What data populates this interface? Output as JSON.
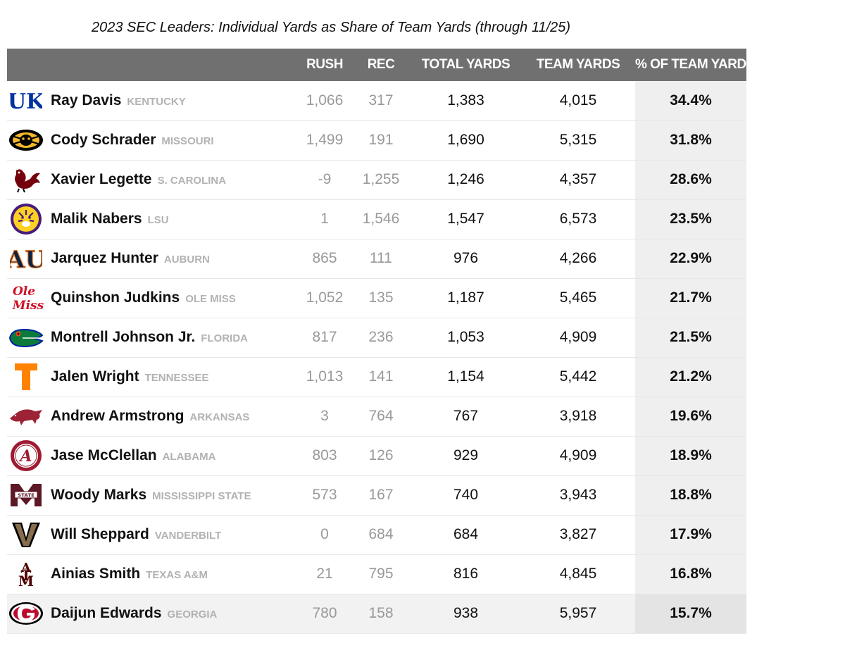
{
  "title": "2023 SEC Leaders: Individual Yards as Share of Team Yards (through 11/25)",
  "columns": {
    "rush": "RUSH",
    "rec": "REC",
    "total": "TOTAL YARDS",
    "team": "TEAM YARDS",
    "pct": "% OF TEAM YARDS"
  },
  "rows": [
    {
      "player": "Ray Davis",
      "team": "KENTUCKY",
      "logo": "kentucky-logo-icon",
      "rush": "1,066",
      "rec": "317",
      "total": "1,383",
      "team_yards": "4,015",
      "pct": "34.4%"
    },
    {
      "player": "Cody Schrader",
      "team": "MISSOURI",
      "logo": "missouri-tiger-logo-icon",
      "rush": "1,499",
      "rec": "191",
      "total": "1,690",
      "team_yards": "5,315",
      "pct": "31.8%"
    },
    {
      "player": "Xavier Legette",
      "team": "S. CAROLINA",
      "logo": "gamecock-logo-icon",
      "rush": "-9",
      "rec": "1,255",
      "total": "1,246",
      "team_yards": "4,357",
      "pct": "28.6%"
    },
    {
      "player": "Malik Nabers",
      "team": "LSU",
      "logo": "lsu-tiger-logo-icon",
      "rush": "1",
      "rec": "1,546",
      "total": "1,547",
      "team_yards": "6,573",
      "pct": "23.5%"
    },
    {
      "player": "Jarquez Hunter",
      "team": "AUBURN",
      "logo": "auburn-logo-icon",
      "rush": "865",
      "rec": "111",
      "total": "976",
      "team_yards": "4,266",
      "pct": "22.9%"
    },
    {
      "player": "Quinshon Judkins",
      "team": "OLE MISS",
      "logo": "ole-miss-logo-icon",
      "rush": "1,052",
      "rec": "135",
      "total": "1,187",
      "team_yards": "5,465",
      "pct": "21.7%"
    },
    {
      "player": "Montrell Johnson Jr.",
      "team": "FLORIDA",
      "logo": "florida-gator-logo-icon",
      "rush": "817",
      "rec": "236",
      "total": "1,053",
      "team_yards": "4,909",
      "pct": "21.5%"
    },
    {
      "player": "Jalen Wright",
      "team": "TENNESSEE",
      "logo": "tennessee-logo-icon",
      "rush": "1,013",
      "rec": "141",
      "total": "1,154",
      "team_yards": "5,442",
      "pct": "21.2%"
    },
    {
      "player": "Andrew Armstrong",
      "team": "ARKANSAS",
      "logo": "razorback-logo-icon",
      "rush": "3",
      "rec": "764",
      "total": "767",
      "team_yards": "3,918",
      "pct": "19.6%"
    },
    {
      "player": "Jase McClellan",
      "team": "ALABAMA",
      "logo": "alabama-logo-icon",
      "rush": "803",
      "rec": "126",
      "total": "929",
      "team_yards": "4,909",
      "pct": "18.9%"
    },
    {
      "player": "Woody Marks",
      "team": "MISSISSIPPI STATE",
      "logo": "mississippi-state-logo-icon",
      "rush": "573",
      "rec": "167",
      "total": "740",
      "team_yards": "3,943",
      "pct": "18.8%"
    },
    {
      "player": "Will Sheppard",
      "team": "VANDERBILT",
      "logo": "vanderbilt-logo-icon",
      "rush": "0",
      "rec": "684",
      "total": "684",
      "team_yards": "3,827",
      "pct": "17.9%"
    },
    {
      "player": "Ainias Smith",
      "team": "TEXAS A&M",
      "logo": "texas-am-logo-icon",
      "rush": "21",
      "rec": "795",
      "total": "816",
      "team_yards": "4,845",
      "pct": "16.8%"
    },
    {
      "player": "Daijun Edwards",
      "team": "GEORGIA",
      "logo": "georgia-logo-icon",
      "rush": "780",
      "rec": "158",
      "total": "938",
      "team_yards": "5,957",
      "pct": "15.7%"
    }
  ],
  "logos": {
    "kentucky": {
      "text": "UK",
      "color": "#0033a0"
    },
    "missouri": {
      "color": "#f1b82d"
    },
    "south_carolina": {
      "color": "#73000a"
    },
    "lsu": {
      "color": "#461d7c"
    },
    "auburn": {
      "text": "AU",
      "color": "#0c2340",
      "accent": "#e87722"
    },
    "ole_miss": {
      "text": "Ole Miss",
      "color": "#ce1126"
    },
    "florida": {
      "color": "#0021a5",
      "accent": "#fa4616"
    },
    "tennessee": {
      "text": "T",
      "color": "#ff8200"
    },
    "arkansas": {
      "color": "#9d2235"
    },
    "alabama": {
      "text": "A",
      "color": "#9e1b32"
    },
    "mississippi_state": {
      "text": "M",
      "color": "#5d1725"
    },
    "vanderbilt": {
      "text": "V",
      "color": "#866d4b"
    },
    "texas_am": {
      "text": "ATM",
      "color": "#500000"
    },
    "georgia": {
      "text": "G",
      "color": "#ba0c2f"
    }
  }
}
